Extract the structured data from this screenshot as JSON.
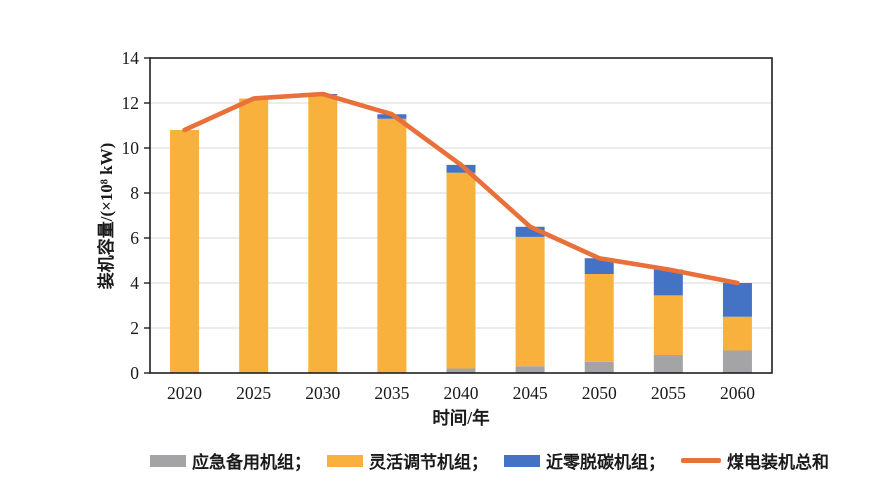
{
  "figure": {
    "xlabel": "时间/年",
    "ylabel": "装机容量/(×10⁸ kW)"
  },
  "legend": {
    "items": [
      {
        "label": "应急备用机组；",
        "swatch": "rect",
        "color": "#A4A4A6"
      },
      {
        "label": "灵活调节机组；",
        "swatch": "rect",
        "color": "#F8B13C"
      },
      {
        "label": "近零脱碳机组；",
        "swatch": "rect",
        "color": "#4472C4"
      },
      {
        "label": "煤电装机总和",
        "swatch": "line",
        "color": "#E8703A"
      }
    ]
  },
  "chart_data": {
    "type": "bar",
    "stacked": true,
    "title": "",
    "xlabel": "时间/年",
    "ylabel": "装机容量/(×10⁸ kW)",
    "categories": [
      "2020",
      "2025",
      "2030",
      "2035",
      "2040",
      "2045",
      "2050",
      "2055",
      "2060"
    ],
    "series": [
      {
        "name": "应急备用机组",
        "color": "#A4A4A6",
        "values": [
          0,
          0,
          0,
          0,
          0.2,
          0.3,
          0.5,
          0.8,
          1.0
        ]
      },
      {
        "name": "灵活调节机组",
        "color": "#F8B13C",
        "values": [
          10.8,
          12.2,
          12.35,
          11.3,
          8.7,
          5.75,
          3.9,
          2.65,
          1.5
        ]
      },
      {
        "name": "近零脱碳机组",
        "color": "#4472C4",
        "values": [
          0,
          0,
          0.05,
          0.2,
          0.35,
          0.45,
          0.7,
          1.15,
          1.5
        ]
      }
    ],
    "line_series": {
      "name": "煤电装机总和",
      "color": "#E8703A",
      "values": [
        10.8,
        12.2,
        12.4,
        11.5,
        9.25,
        6.5,
        5.1,
        4.6,
        4.0
      ]
    },
    "ylim": [
      0,
      14
    ],
    "ytick_step": 2,
    "yticks": [
      0,
      2,
      4,
      6,
      8,
      10,
      12,
      14
    ],
    "grid": true,
    "legend_position": "bottom",
    "colors": {
      "grid": "#D9D9D9",
      "frame": "#1f1f1f",
      "tick_text": "#1a1a1a"
    }
  }
}
